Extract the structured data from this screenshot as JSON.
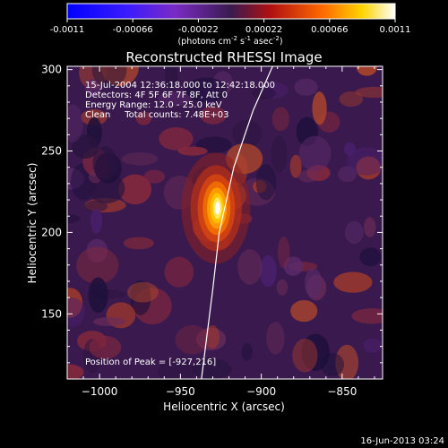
{
  "chart_data": {
    "type": "heatmap",
    "title": "Reconstructed RHESSI Image",
    "colorbar": {
      "ticks": [
        "-0.0011",
        "-0.00066",
        "-0.00022",
        "0.00022",
        "0.00066",
        "0.0011"
      ],
      "range": [
        -0.0011,
        0.0011
      ],
      "label_main": "(photons cm",
      "label_e1": "-2",
      "label_mid": " s",
      "label_e2": "-1",
      "label_asec": " asec",
      "label_e3": "-2",
      "label_end": ")"
    },
    "xlabel": "Heliocentric X (arcsec)",
    "ylabel": "Heliocentric Y (arcsec)",
    "xlim": [
      -1020,
      -825
    ],
    "ylim": [
      110,
      302
    ],
    "xticks": [
      {
        "value": -1000,
        "label": "−1000"
      },
      {
        "value": -950,
        "label": "−950"
      },
      {
        "value": -900,
        "label": "−900"
      },
      {
        "value": -850,
        "label": "−850"
      }
    ],
    "yticks": [
      {
        "value": 150,
        "label": "150"
      },
      {
        "value": 200,
        "label": "200"
      },
      {
        "value": 250,
        "label": "250"
      },
      {
        "value": 300,
        "label": "300"
      }
    ],
    "annotations": [
      "15-Jul-2004 12:36:18.000 to 12:42:18.000",
      "Detectors: 4F 5F 6F 7F 8F, Att 0",
      "Energy Range: 12.0 - 25.0 keV",
      "Clean     Total counts: 7.48E+03"
    ],
    "peak_label": "Position of Peak = [-927,216]",
    "peak": {
      "x": -927,
      "y": 216
    },
    "limb_points": [
      [
        -937,
        110
      ],
      [
        -930,
        165
      ],
      [
        -926,
        200
      ],
      [
        -917,
        240
      ],
      [
        -905,
        275
      ],
      [
        -893,
        302
      ]
    ],
    "colors": {
      "background": "#000000",
      "neutral": "#3a1a4e",
      "peak": "#ffffff"
    }
  },
  "footer": {
    "timestamp": "16-Jun-2013 03:24"
  }
}
